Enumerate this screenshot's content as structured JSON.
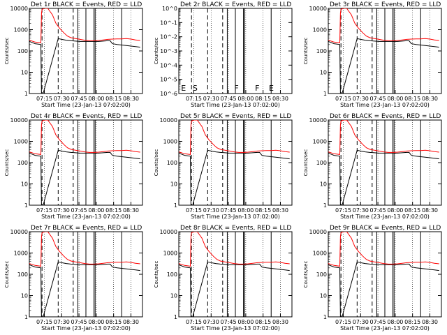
{
  "figure": {
    "xlabel": "Start Time (23-Jan-13 07:02:00)",
    "ylabel": "Counts/sec",
    "x_tick_labels": [
      "07:15",
      "07:30",
      "07:45",
      "08:00",
      "08:15",
      "08:30"
    ],
    "y_tick_labels": [
      "1",
      "10",
      "100",
      "1000",
      "10000"
    ],
    "y_tick_labels_alt": [
      "10^-6",
      "10^-5",
      "10^-4",
      "10^-3",
      "10^-2",
      "10^-1",
      "10^0"
    ],
    "colors": {
      "events": "#000000",
      "lld": "#ff0000"
    }
  },
  "chart_data": [
    {
      "id": "det1",
      "title": "Det 1r BLACK = Events, RED = LLD",
      "type": "line",
      "yscale": "log",
      "ylim": [
        1,
        10000
      ],
      "xlim_minutes_after_07_02": [
        0,
        98
      ],
      "series": [
        {
          "name": "Events",
          "color": "#000000"
        },
        {
          "name": "LLD",
          "color": "#ff0000"
        }
      ]
    },
    {
      "id": "det2",
      "title": "Det 2r BLACK = Events, RED = LLD",
      "type": "line",
      "yscale": "log",
      "ylim": [
        1e-06,
        1
      ],
      "xlim_minutes_after_07_02": [
        0,
        98
      ],
      "annotations": [
        "E",
        "S",
        "F",
        "F",
        "E"
      ],
      "series": []
    },
    {
      "id": "det3",
      "title": "Det 3r BLACK = Events, RED = LLD",
      "type": "line",
      "yscale": "log",
      "ylim": [
        1,
        10000
      ],
      "xlim_minutes_after_07_02": [
        0,
        98
      ],
      "series": [
        {
          "name": "Events",
          "color": "#000000"
        },
        {
          "name": "LLD",
          "color": "#ff0000"
        }
      ]
    },
    {
      "id": "det4",
      "title": "Det 4r BLACK = Events, RED = LLD",
      "type": "line",
      "yscale": "log",
      "ylim": [
        1,
        10000
      ],
      "xlim_minutes_after_07_02": [
        0,
        98
      ],
      "series": [
        {
          "name": "Events",
          "color": "#000000"
        },
        {
          "name": "LLD",
          "color": "#ff0000"
        }
      ]
    },
    {
      "id": "det5",
      "title": "Det 5r BLACK = Events, RED = LLD",
      "type": "line",
      "yscale": "log",
      "ylim": [
        1,
        10000
      ],
      "xlim_minutes_after_07_02": [
        0,
        98
      ],
      "series": [
        {
          "name": "Events",
          "color": "#000000"
        },
        {
          "name": "LLD",
          "color": "#ff0000"
        }
      ]
    },
    {
      "id": "det6",
      "title": "Det 6r BLACK = Events, RED = LLD",
      "type": "line",
      "yscale": "log",
      "ylim": [
        1,
        10000
      ],
      "xlim_minutes_after_07_02": [
        0,
        98
      ],
      "series": [
        {
          "name": "Events",
          "color": "#000000"
        },
        {
          "name": "LLD",
          "color": "#ff0000"
        }
      ]
    },
    {
      "id": "det7",
      "title": "Det 7r BLACK = Events, RED = LLD",
      "type": "line",
      "yscale": "log",
      "ylim": [
        1,
        10000
      ],
      "xlim_minutes_after_07_02": [
        0,
        98
      ],
      "series": [
        {
          "name": "Events",
          "color": "#000000"
        },
        {
          "name": "LLD",
          "color": "#ff0000"
        }
      ]
    },
    {
      "id": "det8",
      "title": "Det 8r BLACK = Events, RED = LLD",
      "type": "line",
      "yscale": "log",
      "ylim": [
        1,
        10000
      ],
      "xlim_minutes_after_07_02": [
        0,
        98
      ],
      "series": [
        {
          "name": "Events",
          "color": "#000000"
        },
        {
          "name": "LLD",
          "color": "#ff0000"
        }
      ]
    },
    {
      "id": "det9",
      "title": "Det 9r BLACK = Events, RED = LLD",
      "type": "line",
      "yscale": "log",
      "ylim": [
        1,
        10000
      ],
      "xlim_minutes_after_07_02": [
        0,
        98
      ],
      "series": [
        {
          "name": "Events",
          "color": "#000000"
        },
        {
          "name": "LLD",
          "color": "#ff0000"
        }
      ]
    }
  ]
}
